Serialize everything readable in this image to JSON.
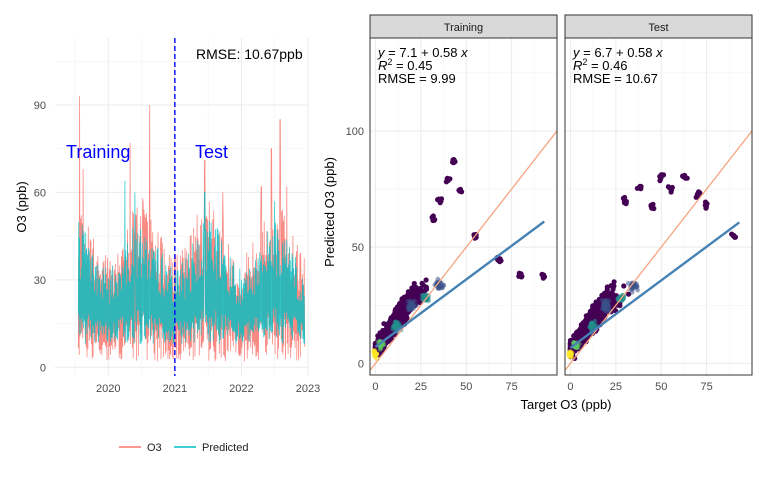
{
  "colors": {
    "o3": "#F8766D",
    "predicted": "#00BFC4",
    "split_line": "#0000FF",
    "label_blue": "#0000FF",
    "identity_line": "#F4A582",
    "fit_line": "#4682B4",
    "strip_fill": "#D9D9D9",
    "panel_border": "#333333",
    "grid": "#EBEBEB",
    "viridis_dark": "#440154",
    "viridis_mid": "#21908C",
    "viridis_light": "#FDE725"
  },
  "chart_data": [
    {
      "type": "line",
      "ylabel": "O3 (ppb)",
      "xlabel": "",
      "x_ticks": [
        "2020",
        "2021",
        "2022",
        "2023"
      ],
      "y_ticks": [
        "0",
        "30",
        "60",
        "90"
      ],
      "ylim": [
        -3,
        113
      ],
      "xlim": [
        2019.2,
        2023.0
      ],
      "grid": true,
      "split_x": 2021.0,
      "annotations": {
        "rmse": "RMSE: 10.67ppb",
        "training": "Training",
        "test": "Test"
      },
      "legend": {
        "position": "bottom",
        "entries": [
          "O3",
          "Predicted"
        ]
      },
      "series": [
        {
          "name": "O3",
          "x_start": 2019.55,
          "x_end": 2022.95,
          "typical_low": 2,
          "typical_high": 45,
          "peaks": [
            [
              2019.57,
              93
            ],
            [
              2019.62,
              68
            ],
            [
              2020.33,
              77
            ],
            [
              2020.52,
              58
            ],
            [
              2020.62,
              90
            ],
            [
              2021.45,
              71
            ],
            [
              2021.72,
              60
            ],
            [
              2022.3,
              62
            ],
            [
              2022.45,
              75
            ],
            [
              2022.58,
              85
            ],
            [
              2022.68,
              62
            ]
          ]
        },
        {
          "name": "Predicted",
          "x_start": 2019.55,
          "x_end": 2022.95,
          "typical_low": 8,
          "typical_high": 40,
          "peaks": [
            [
              2020.25,
              64
            ],
            [
              2020.4,
              60
            ],
            [
              2021.45,
              60
            ],
            [
              2022.5,
              57
            ]
          ]
        }
      ]
    },
    {
      "type": "scatter",
      "facet": "Training",
      "xlabel": "Target O3 (ppb)",
      "ylabel": "Predicted O3 (ppb)",
      "x_ticks": [
        "0",
        "25",
        "50",
        "75"
      ],
      "y_ticks": [
        "0",
        "50",
        "100"
      ],
      "xlim": [
        -3,
        100
      ],
      "ylim": [
        -5,
        140
      ],
      "identity_line": {
        "slope": 1,
        "intercept": 0
      },
      "fit": {
        "intercept": 7.1,
        "slope": 0.58,
        "x_range": [
          0,
          93
        ]
      },
      "stats": {
        "eq_y": "y",
        "eq_rhs": " = 7.1 + 0.58 ",
        "eq_x": "x",
        "r2_label": "R",
        "r2_sup": "2",
        "r2_value": " = 0.45",
        "rmse": "RMSE = 9.99"
      },
      "cloud": {
        "core": [
          [
            2,
            8
          ],
          [
            20,
            28
          ],
          [
            40,
            38
          ],
          [
            60,
            44
          ],
          [
            80,
            50
          ]
        ],
        "spread_y": 13,
        "outliers": [
          [
            35,
            70
          ],
          [
            40,
            80
          ],
          [
            43,
            87
          ],
          [
            55,
            55
          ],
          [
            68,
            45
          ],
          [
            80,
            38
          ],
          [
            92,
            38
          ],
          [
            47,
            75
          ],
          [
            32,
            62
          ]
        ]
      }
    },
    {
      "type": "scatter",
      "facet": "Test",
      "xlabel": "Target O3 (ppb)",
      "ylabel": "Predicted O3 (ppb)",
      "x_ticks": [
        "0",
        "25",
        "50",
        "75"
      ],
      "y_ticks": [
        "0",
        "50",
        "100"
      ],
      "xlim": [
        -3,
        100
      ],
      "ylim": [
        -5,
        140
      ],
      "identity_line": {
        "slope": 1,
        "intercept": 0
      },
      "fit": {
        "intercept": 6.7,
        "slope": 0.58,
        "x_range": [
          0,
          93
        ]
      },
      "stats": {
        "eq_y": "y",
        "eq_rhs": " = 6.7 + 0.58 ",
        "eq_x": "x",
        "r2_label": "R",
        "r2_sup": "2",
        "r2_value": " = 0.46",
        "rmse": "RMSE = 10.67"
      },
      "cloud": {
        "core": [
          [
            2,
            8
          ],
          [
            20,
            26
          ],
          [
            40,
            36
          ],
          [
            60,
            46
          ],
          [
            80,
            56
          ]
        ],
        "spread_y": 14,
        "outliers": [
          [
            30,
            70
          ],
          [
            45,
            68
          ],
          [
            50,
            80
          ],
          [
            55,
            75
          ],
          [
            63,
            80
          ],
          [
            70,
            73
          ],
          [
            75,
            68
          ],
          [
            90,
            55
          ],
          [
            38,
            76
          ]
        ]
      }
    }
  ]
}
